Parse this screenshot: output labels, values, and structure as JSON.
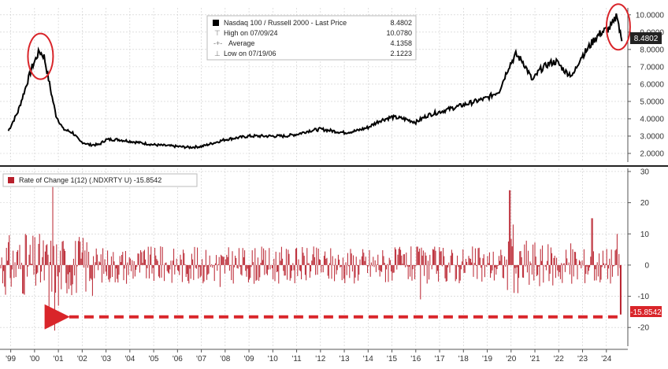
{
  "colors": {
    "price_line": "#000000",
    "roc_bar": "#b8202c",
    "highlight": "#d9252a",
    "grid": "#cccccc",
    "price_label_bg": "#222222",
    "roc_label_bg": "#d9252a"
  },
  "chart_data": [
    {
      "type": "line",
      "panel": "top",
      "y_axis_side": "right",
      "ylim": [
        1.5,
        10.4
      ],
      "grid": true,
      "yticks": [
        2.0,
        3.0,
        4.0,
        5.0,
        6.0,
        7.0,
        8.0,
        9.0,
        10.0
      ],
      "ytick_labels": [
        "2.0000",
        "3.0000",
        "4.0000",
        "5.0000",
        "6.0000",
        "7.0000",
        "8.0000",
        "9.0000",
        "10.0000"
      ],
      "legend": {
        "title": "Nasdaq 100 / Russell 2000 - Last Price",
        "title_value": "8.4802",
        "rows": [
          {
            "label": "High on 07/09/24",
            "value": "10.0780"
          },
          {
            "label": "Average",
            "value": "4.1358"
          },
          {
            "label": "Low on 07/19/06",
            "value": "2.1223"
          }
        ]
      },
      "last_value_label": "8.4802",
      "series": [
        {
          "x": [
            1998.9,
            1999.3,
            1999.6,
            1999.9,
            2000.2,
            2000.4,
            2000.7,
            2000.9,
            2001.2,
            2001.6,
            2001.9,
            2002.3,
            2002.7,
            2003.0,
            2003.5,
            2004.0,
            2004.5,
            2005.0,
            2005.5,
            2006.0,
            2006.5,
            2007.0,
            2007.5,
            2008.0,
            2008.5,
            2009.0,
            2009.5,
            2010.0,
            2010.5,
            2011.0,
            2011.5,
            2012.0,
            2012.5,
            2013.0,
            2013.5,
            2014.0,
            2014.5,
            2015.0,
            2015.5,
            2016.0,
            2016.5,
            2017.0,
            2017.5,
            2018.0,
            2018.5,
            2019.0,
            2019.5,
            2019.9,
            2020.2,
            2020.5,
            2020.9,
            2021.2,
            2021.6,
            2021.9,
            2022.3,
            2022.6,
            2022.9,
            2023.2,
            2023.5,
            2023.8,
            2024.1,
            2024.3,
            2024.45,
            2024.55,
            2024.65
          ],
          "y": [
            3.3,
            4.4,
            5.7,
            7.0,
            7.9,
            7.6,
            5.5,
            4.2,
            3.4,
            3.2,
            2.7,
            2.5,
            2.5,
            2.8,
            2.8,
            2.7,
            2.6,
            2.5,
            2.45,
            2.4,
            2.35,
            2.4,
            2.6,
            2.8,
            2.9,
            3.0,
            3.0,
            3.0,
            3.0,
            3.1,
            3.3,
            3.4,
            3.3,
            3.2,
            3.3,
            3.5,
            3.9,
            4.1,
            4.0,
            3.8,
            4.2,
            4.4,
            4.6,
            4.8,
            5.0,
            5.2,
            5.6,
            7.0,
            7.7,
            7.3,
            6.2,
            6.8,
            7.2,
            7.3,
            6.7,
            6.5,
            7.5,
            8.0,
            8.6,
            9.0,
            9.2,
            9.5,
            10.08,
            9.1,
            8.48
          ]
        }
      ]
    },
    {
      "type": "bar",
      "panel": "bottom",
      "y_axis_side": "right",
      "ylim": [
        -26,
        31
      ],
      "grid": true,
      "yticks": [
        -20,
        -10,
        0,
        10,
        20,
        30
      ],
      "ytick_labels": [
        "-20",
        "-10",
        "0",
        "10",
        "20",
        "30"
      ],
      "legend": {
        "title": "Rate of Change 1(12) (.NDXRTY U) -15.8542"
      },
      "last_value_label": "-15.8542",
      "spikes": [
        {
          "x": 1999.6,
          "y": 10
        },
        {
          "x": 2000.2,
          "y": 10
        },
        {
          "x": 2000.6,
          "y": -16
        },
        {
          "x": 2000.75,
          "y": 25
        },
        {
          "x": 2000.85,
          "y": -21
        },
        {
          "x": 2001.0,
          "y": -13
        },
        {
          "x": 2005.3,
          "y": 6
        },
        {
          "x": 2007.8,
          "y": -7
        },
        {
          "x": 2016.2,
          "y": -11
        },
        {
          "x": 2019.95,
          "y": 24
        },
        {
          "x": 2020.1,
          "y": 13
        },
        {
          "x": 2020.3,
          "y": -9
        },
        {
          "x": 2023.4,
          "y": 15
        },
        {
          "x": 2024.45,
          "y": 10
        },
        {
          "x": 2024.6,
          "y": -15.85
        }
      ]
    }
  ],
  "x_axis": {
    "range": [
      1998.55,
      2024.9
    ],
    "tick_labels": [
      "'99",
      "'00",
      "'01",
      "'02",
      "'03",
      "'04",
      "'05",
      "'06",
      "'07",
      "'08",
      "'09",
      "'10",
      "'11",
      "'12",
      "'13",
      "'14",
      "'15",
      "'16",
      "'17",
      "'18",
      "'19",
      "'20",
      "'21",
      "'22",
      "'23",
      "'24"
    ]
  }
}
